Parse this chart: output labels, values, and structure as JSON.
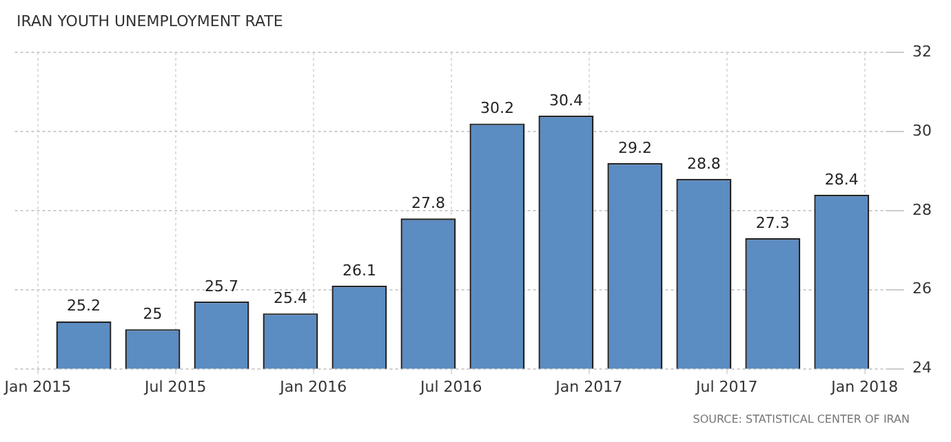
{
  "chart_data": {
    "type": "bar",
    "title": "IRAN YOUTH UNEMPLOYMENT RATE",
    "x": [
      "2015-03",
      "2015-06",
      "2015-09",
      "2015-12",
      "2016-03",
      "2016-06",
      "2016-09",
      "2016-12",
      "2017-03",
      "2017-06",
      "2017-09",
      "2017-12"
    ],
    "values": [
      25.2,
      25,
      25.7,
      25.4,
      26.1,
      27.8,
      30.2,
      30.4,
      29.2,
      28.8,
      27.3,
      28.4
    ],
    "color": "#5b8cc2",
    "xlim": [
      "2014-12",
      "2018-02"
    ],
    "xticks": [
      {
        "value": "2015-01",
        "label": "Jan 2015"
      },
      {
        "value": "2015-07",
        "label": "Jul 2015"
      },
      {
        "value": "2016-01",
        "label": "Jan 2016"
      },
      {
        "value": "2016-07",
        "label": "Jul 2016"
      },
      {
        "value": "2017-01",
        "label": "Jan 2017"
      },
      {
        "value": "2017-07",
        "label": "Jul 2017"
      },
      {
        "value": "2018-01",
        "label": "Jan 2018"
      }
    ],
    "ylim": [
      24,
      32
    ],
    "yticks": [
      24,
      26,
      28,
      30,
      32
    ],
    "grid": true,
    "data_labels": true,
    "legend": false,
    "annotations": [
      "SOURCE: STATISTICAL CENTER OF IRAN"
    ]
  }
}
